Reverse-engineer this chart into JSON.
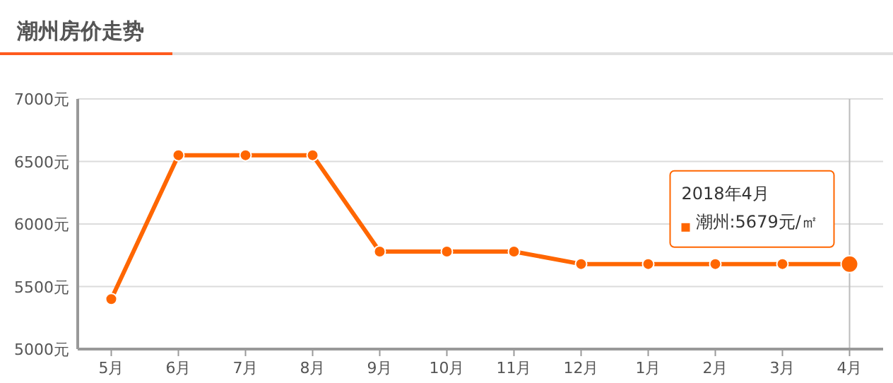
{
  "chart_data": {
    "type": "line",
    "title": "潮州房价走势",
    "categories": [
      "5月",
      "6月",
      "7月",
      "8月",
      "9月",
      "10月",
      "11月",
      "12月",
      "1月",
      "2月",
      "3月",
      "4月"
    ],
    "series": [
      {
        "color": "#ff6600",
        "values": [
          5400,
          6550,
          6550,
          6550,
          5780,
          5780,
          5780,
          5680,
          5680,
          5680,
          5680,
          5679
        ]
      }
    ],
    "ylim": [
      5000,
      7000
    ],
    "yticks": [
      {
        "value": 5000,
        "label": "5000元"
      },
      {
        "value": 5500,
        "label": "5500元"
      },
      {
        "value": 6000,
        "label": "6000元"
      },
      {
        "value": 6500,
        "label": "6500元"
      },
      {
        "value": 7000,
        "label": "7000元"
      }
    ],
    "grid": "y",
    "marker": "circle",
    "line_style": "solid",
    "ref_lines": [
      {
        "axis": "x",
        "value": "4月",
        "color": "#bbbbbb"
      }
    ],
    "annotations": [
      "2018年4月",
      "潮州:5679元/㎡"
    ]
  }
}
